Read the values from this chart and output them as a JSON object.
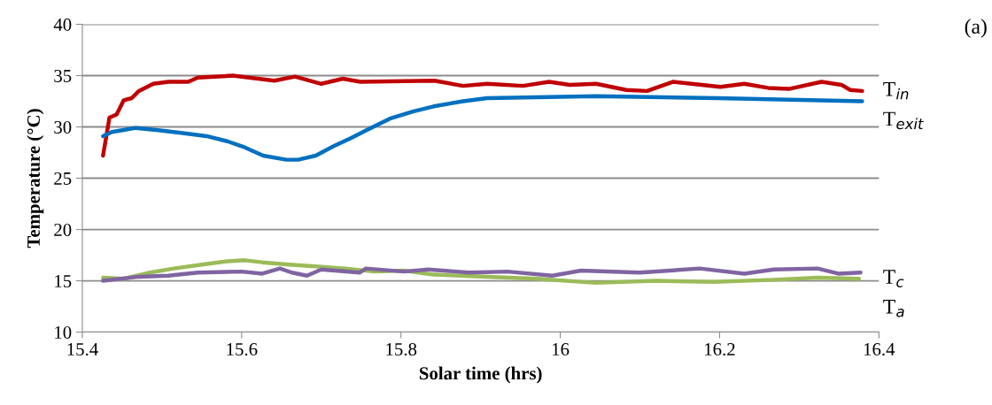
{
  "chart_data": {
    "type": "line",
    "xlabel": "Solar time (hrs)",
    "ylabel": "Temperature (°C)",
    "annotations": [
      "(a)"
    ],
    "xlim": [
      15.4,
      16.4
    ],
    "xticks": [
      15.4,
      15.6,
      15.8,
      {
        "value": 16,
        "label": "16"
      },
      16.2,
      16.4
    ],
    "ylim": [
      10,
      40
    ],
    "yticks": [
      10,
      15,
      20,
      25,
      30,
      35,
      40
    ],
    "grid": "y",
    "legend": false,
    "marker": "none",
    "line_style": "solid",
    "series": [
      {
        "name": "T$_{in}$",
        "color": "#c00000",
        "x": [
          15.426,
          15.434,
          15.443,
          15.452,
          15.462,
          15.471,
          15.489,
          15.508,
          15.533,
          15.545,
          15.589,
          15.641,
          15.667,
          15.7,
          15.727,
          15.749,
          15.842,
          15.878,
          15.908,
          15.953,
          15.986,
          16.012,
          16.045,
          16.083,
          16.109,
          16.142,
          16.201,
          16.231,
          16.261,
          16.287,
          16.328,
          16.353,
          16.364,
          16.379
        ],
        "values": [
          27.2,
          30.9,
          31.2,
          32.6,
          32.8,
          33.5,
          34.2,
          34.4,
          34.4,
          34.8,
          35.0,
          34.5,
          34.9,
          34.2,
          34.7,
          34.4,
          34.5,
          34.0,
          34.2,
          34.0,
          34.4,
          34.1,
          34.2,
          33.6,
          33.5,
          34.4,
          33.9,
          34.2,
          33.8,
          33.7,
          34.4,
          34.1,
          33.6,
          33.5
        ]
      },
      {
        "name": "T$_{exit}$",
        "color": "#0070c0",
        "x": [
          15.426,
          15.437,
          15.452,
          15.467,
          15.493,
          15.526,
          15.556,
          15.582,
          15.604,
          15.627,
          15.656,
          15.671,
          15.693,
          15.715,
          15.737,
          15.76,
          15.786,
          15.815,
          15.841,
          15.878,
          15.908,
          16.045,
          16.198,
          16.379
        ],
        "values": [
          29.1,
          29.5,
          29.7,
          29.9,
          29.7,
          29.4,
          29.1,
          28.6,
          28.0,
          27.2,
          26.8,
          26.8,
          27.2,
          28.1,
          28.9,
          29.8,
          30.8,
          31.5,
          32.0,
          32.5,
          32.8,
          33.0,
          32.8,
          32.5
        ]
      },
      {
        "name": "T$_{c}$",
        "color": "#9bbb59",
        "x": [
          15.426,
          15.452,
          15.485,
          15.515,
          15.552,
          15.582,
          15.604,
          15.626,
          15.656,
          15.693,
          15.73,
          15.767,
          15.804,
          15.841,
          15.908,
          15.971,
          16.045,
          16.119,
          16.193,
          16.268,
          16.323,
          16.375
        ],
        "values": [
          15.3,
          15.2,
          15.8,
          16.2,
          16.6,
          16.9,
          17.0,
          16.8,
          16.6,
          16.4,
          16.2,
          15.9,
          16.0,
          15.6,
          15.4,
          15.2,
          14.8,
          15.0,
          14.9,
          15.1,
          15.3,
          15.2
        ]
      },
      {
        "name": "T$_{a}$",
        "color": "#8064a2",
        "x": [
          15.426,
          15.471,
          15.508,
          15.545,
          15.6,
          15.626,
          15.648,
          15.663,
          15.682,
          15.7,
          15.748,
          15.756,
          15.804,
          15.834,
          15.886,
          15.934,
          15.99,
          16.026,
          16.1,
          16.175,
          16.231,
          16.268,
          16.323,
          16.349,
          16.377
        ],
        "values": [
          15.0,
          15.4,
          15.5,
          15.8,
          15.9,
          15.7,
          16.2,
          15.8,
          15.5,
          16.1,
          15.8,
          16.2,
          15.9,
          16.1,
          15.8,
          15.9,
          15.5,
          16.0,
          15.8,
          16.2,
          15.7,
          16.1,
          16.2,
          15.7,
          15.8
        ]
      }
    ]
  }
}
